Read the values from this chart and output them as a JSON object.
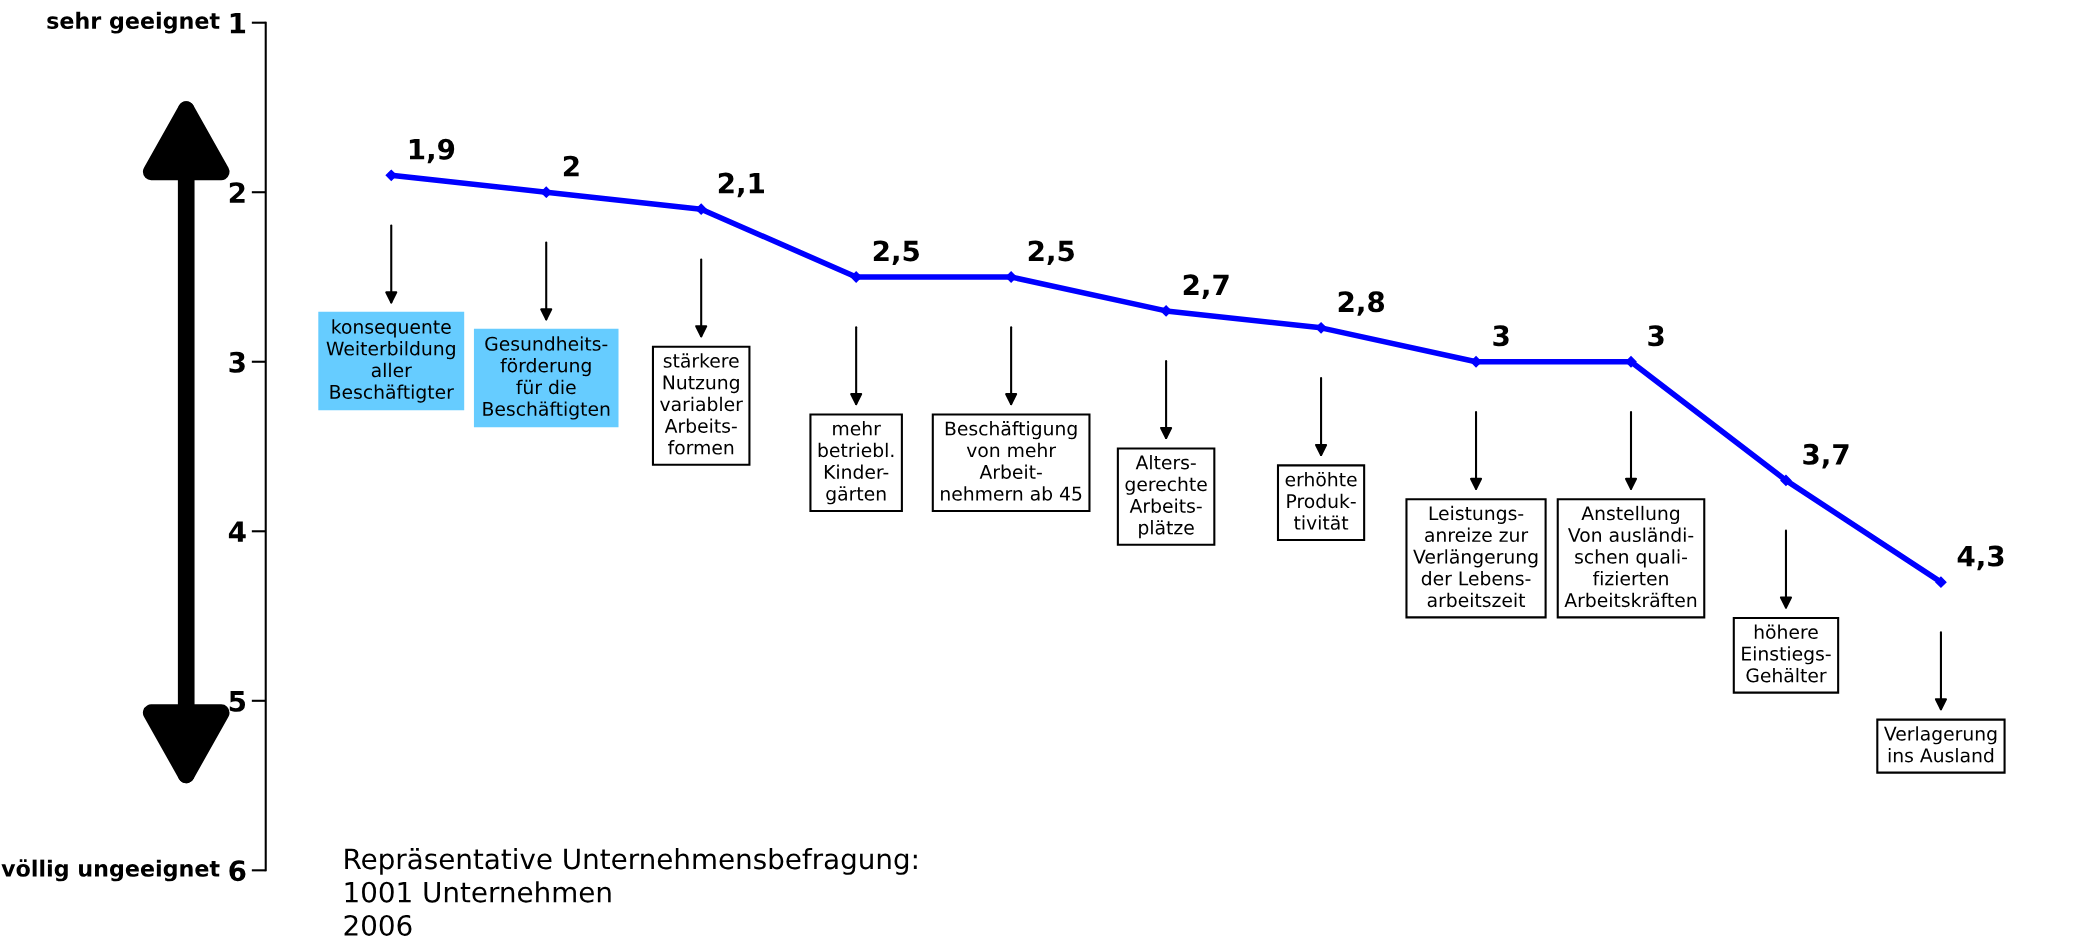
{
  "chart_data": {
    "type": "line",
    "categories": [
      "konsequente\nWeiterbildung\naller\nBeschäftigter",
      "Gesundheits-\nförderung\nfür die\nBeschäftigten",
      "stärkere\nNutzung\nvariabler\nArbeits-\nformen",
      "mehr\nbetriebl.\nKinder-\ngärten",
      "Beschäftigung\nvon mehr\nArbeit-\nnehmern ab 45",
      "Alters-\ngerechte\nArbeits-\nplätze",
      "erhöhte\nProduk-\ntivität",
      "Leistungs-\nanreize zur\nVerlängerung\nder Lebens-\narbeitszeit",
      "Anstellung\nVon ausländi-\nschen quali-\nfizierten\nArbeitskräften",
      "höhere\nEinstiegs-\nGehälter",
      "Verlagerung\nins Ausland"
    ],
    "series": [
      {
        "color": "#0000ff",
        "values": [
          1.9,
          2,
          2.1,
          2.5,
          2.5,
          2.7,
          2.8,
          3,
          3,
          3.7,
          4.3
        ],
        "value_labels": [
          "1,9",
          "2",
          "2,1",
          "2,5",
          "2,5",
          "2,7",
          "2,8",
          "3",
          "3",
          "3,7",
          "4,3"
        ]
      }
    ],
    "ylim": [
      6,
      1
    ],
    "yticks": [
      1,
      2,
      3,
      4,
      5,
      6
    ],
    "marker": "diamond",
    "line_style": "solid",
    "grid": false,
    "legend": false,
    "tick_labels": "y",
    "annotations": [
      "sehr geeignet",
      "völlig ungeeignet",
      "Repräsentative Unternehmensbefragung:\n1001 Unternehmen\n2006"
    ]
  }
}
